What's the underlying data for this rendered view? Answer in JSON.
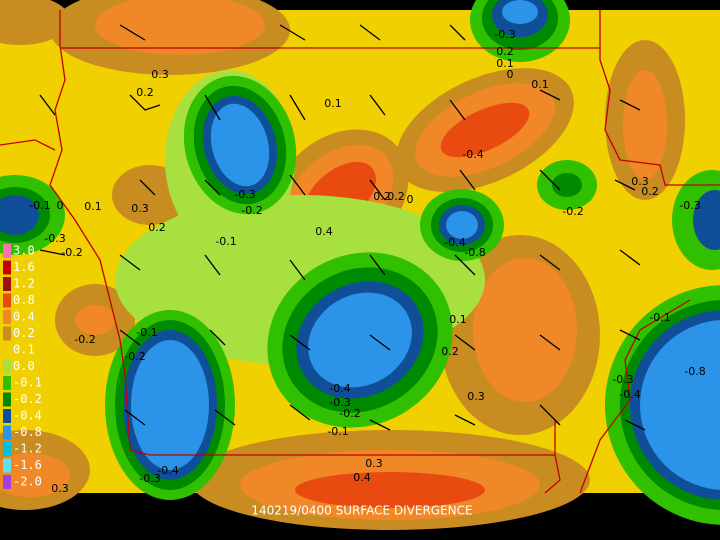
{
  "caption": "140219/0400 SURFACE DIVERGENCE",
  "legend": [
    {
      "label": "3.0",
      "color": "#ff70b0"
    },
    {
      "label": "1.6",
      "color": "#c80000"
    },
    {
      "label": "1.2",
      "color": "#a01010"
    },
    {
      "label": "0.8",
      "color": "#e84a10"
    },
    {
      "label": "0.4",
      "color": "#f08828"
    },
    {
      "label": "0.2",
      "color": "#c88c20"
    },
    {
      "label": "0.1",
      "color": "#f0d000"
    },
    {
      "label": "0.0",
      "color": "#a8e040"
    },
    {
      "label": "-0.1",
      "color": "#30c000"
    },
    {
      "label": "-0.2",
      "color": "#008a00"
    },
    {
      "label": "-0.4",
      "color": "#104e98"
    },
    {
      "label": "-0.8",
      "color": "#2c94e8"
    },
    {
      "label": "-1.2",
      "color": "#00c0e0"
    },
    {
      "label": "-1.6",
      "color": "#60e0f0"
    },
    {
      "label": "-2.0",
      "color": "#a040e0"
    }
  ],
  "contour_labels": [
    "-0.3",
    "0.2",
    "0.1",
    "0",
    "0.3",
    "0.2",
    "0.1",
    "0.1",
    "-0.4",
    "0.3",
    "0.2",
    "-0.1",
    "0",
    "0.1",
    "0.3",
    "-0.3",
    "-0.2",
    "0.2",
    "0.2",
    "0",
    "-0.2",
    "-0.3",
    "0.2",
    "0.4",
    "-0.1",
    "-0.3",
    "-0.2",
    "-0.4",
    "-0.8",
    "0.1",
    "-0.1",
    "-0.1",
    "-0.2",
    "-0.2",
    "0.2",
    "-0.8",
    "-0.3",
    "-0.4",
    "-0.4",
    "-0.3",
    "-0.2",
    "-0.1",
    "0.3",
    "0.3",
    "0.4",
    "-0.4",
    "-0.3",
    "0.3"
  ]
}
